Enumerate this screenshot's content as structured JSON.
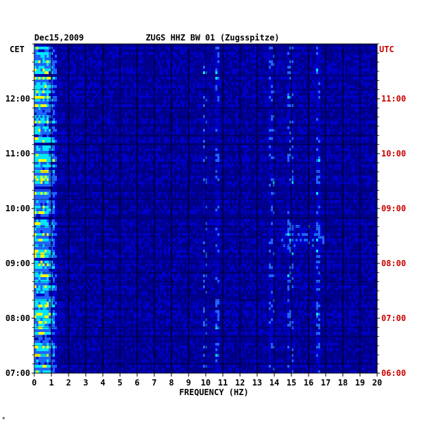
{
  "chart_data": {
    "type": "heatmap",
    "title": "ZUGS HHZ BW 01 (Zugsspitze)",
    "date": "Dec15,2009",
    "xlabel": "FREQUENCY (HZ)",
    "left_timezone": "CET",
    "right_timezone": "UTC",
    "x_ticks": [
      "0",
      "1",
      "2",
      "3",
      "4",
      "5",
      "6",
      "7",
      "8",
      "9",
      "10",
      "11",
      "12",
      "13",
      "14",
      "15",
      "16",
      "17",
      "18",
      "19",
      "20"
    ],
    "xlim": [
      0,
      20
    ],
    "left_ticks": [
      "12:00",
      "11:00",
      "10:00",
      "09:00",
      "08:00",
      "07:00"
    ],
    "right_ticks": [
      "11:00",
      "10:00",
      "09:00",
      "08:00",
      "07:00",
      "06:00"
    ],
    "time_range_cet": [
      "07:00",
      "13:00"
    ],
    "colors": {
      "background": "#00008c",
      "low": "#0000c8",
      "mid": "#1e64ff",
      "cyan": "#00e6ff",
      "yellow": "#ffff00",
      "red": "#ff0000",
      "right_tick_color": "#cc0000",
      "grid": "#000000"
    }
  },
  "footnote": "*"
}
